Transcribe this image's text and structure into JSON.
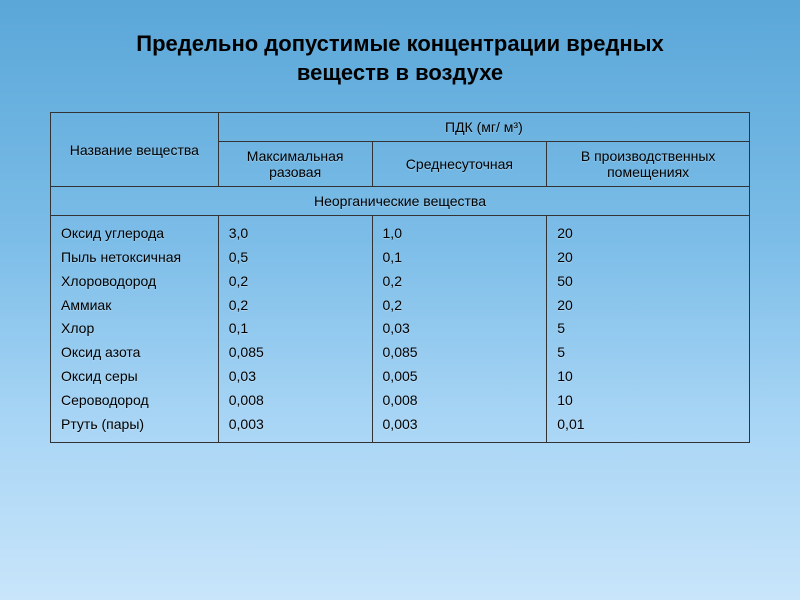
{
  "title_line1": "Предельно допустимые концентрации вредных",
  "title_line2": "веществ в воздухе",
  "headers": {
    "substance": "Название вещества",
    "pdk": "ПДК (мг/ м³)",
    "max_single": "Максимальная разовая",
    "daily_avg": "Среднесуточная",
    "industrial": "В производственных помещениях"
  },
  "section_label": "Неорганические вещества",
  "substances": [
    "Оксид углерода",
    "Пыль нетоксичная",
    "Хлороводород",
    "Аммиак",
    "Хлор",
    "Оксид азота",
    "Оксид серы",
    "Сероводород",
    "Ртуть (пары)"
  ],
  "max_single": [
    "3,0",
    "0,5",
    "0,2",
    "0,2",
    "0,1",
    "0,085",
    "0,03",
    "0,008",
    "0,003"
  ],
  "daily_avg": [
    "1,0",
    "0,1",
    "0,2",
    "0,2",
    "0,03",
    "0,085",
    "0,005",
    "0,008",
    "0,003"
  ],
  "industrial": [
    "20",
    "20",
    "50",
    "20",
    "5",
    "5",
    "10",
    "10",
    "0,01"
  ],
  "styling": {
    "bg_gradient_top": "#5aa7d8",
    "bg_gradient_bottom": "#c8e5fa",
    "border_color": "#333333",
    "text_color": "#000000",
    "title_fontsize_pt": 17,
    "body_fontsize_pt": 11,
    "col_widths_percent": [
      24,
      22,
      25,
      29
    ]
  }
}
